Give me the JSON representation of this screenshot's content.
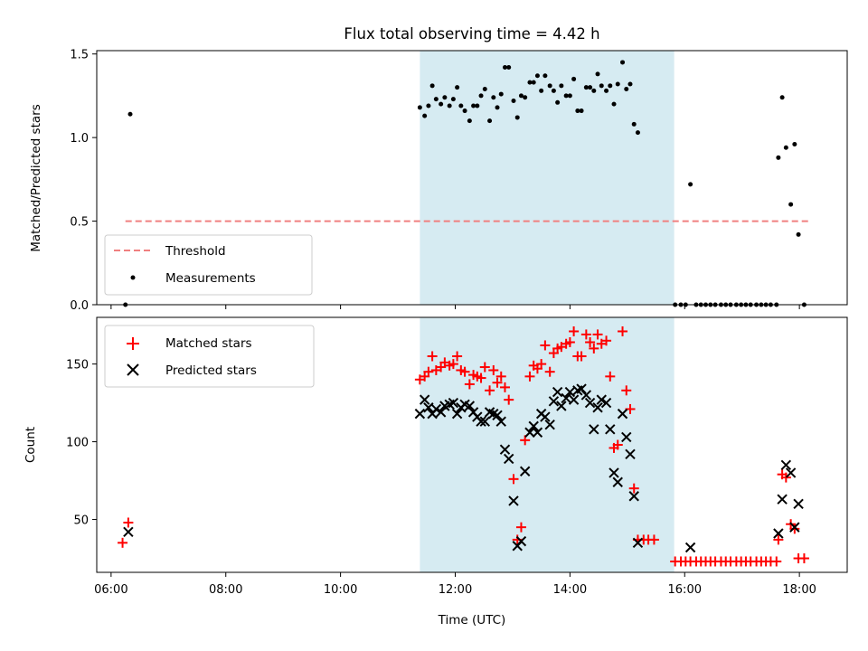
{
  "chart_data": [
    {
      "type": "scatter",
      "title": "Flux total observing time = 4.42 h",
      "xlabel": "",
      "ylabel": "Matched/Predicted stars",
      "xlim": [
        "05:45",
        "18:50"
      ],
      "ylim": [
        0,
        1.52
      ],
      "yticks": [
        "0.0",
        "0.5",
        "1.0",
        "1.5"
      ],
      "shaded_span": [
        "11:23",
        "15:49"
      ],
      "shaded_color": "#add8e6",
      "legend_position": "lower left",
      "threshold": {
        "name": "Threshold",
        "value": 0.5,
        "x_from": "06:15",
        "x_to": "18:10",
        "color": "#f08080"
      },
      "series": [
        {
          "name": "Measurements",
          "color": "#000000",
          "points": [
            [
              "06:15",
              0.0
            ],
            [
              "06:20",
              1.14
            ],
            [
              "11:23",
              1.18
            ],
            [
              "11:28",
              1.13
            ],
            [
              "11:32",
              1.19
            ],
            [
              "11:36",
              1.31
            ],
            [
              "11:40",
              1.23
            ],
            [
              "11:45",
              1.2
            ],
            [
              "11:49",
              1.24
            ],
            [
              "11:54",
              1.19
            ],
            [
              "11:58",
              1.23
            ],
            [
              "12:02",
              1.3
            ],
            [
              "12:06",
              1.19
            ],
            [
              "12:10",
              1.16
            ],
            [
              "12:15",
              1.1
            ],
            [
              "12:19",
              1.19
            ],
            [
              "12:23",
              1.19
            ],
            [
              "12:27",
              1.25
            ],
            [
              "12:31",
              1.29
            ],
            [
              "12:36",
              1.1
            ],
            [
              "12:40",
              1.24
            ],
            [
              "12:44",
              1.18
            ],
            [
              "12:48",
              1.26
            ],
            [
              "12:52",
              1.42
            ],
            [
              "12:56",
              1.42
            ],
            [
              "13:01",
              1.22
            ],
            [
              "13:05",
              1.12
            ],
            [
              "13:09",
              1.25
            ],
            [
              "13:13",
              1.24
            ],
            [
              "13:18",
              1.33
            ],
            [
              "13:22",
              1.33
            ],
            [
              "13:26",
              1.37
            ],
            [
              "13:30",
              1.28
            ],
            [
              "13:34",
              1.37
            ],
            [
              "13:39",
              1.31
            ],
            [
              "13:43",
              1.28
            ],
            [
              "13:47",
              1.21
            ],
            [
              "13:51",
              1.31
            ],
            [
              "13:56",
              1.25
            ],
            [
              "14:00",
              1.25
            ],
            [
              "14:04",
              1.35
            ],
            [
              "14:08",
              1.16
            ],
            [
              "14:12",
              1.16
            ],
            [
              "14:17",
              1.3
            ],
            [
              "14:21",
              1.3
            ],
            [
              "14:25",
              1.28
            ],
            [
              "14:29",
              1.38
            ],
            [
              "14:33",
              1.31
            ],
            [
              "14:38",
              1.28
            ],
            [
              "14:42",
              1.31
            ],
            [
              "14:46",
              1.2
            ],
            [
              "14:50",
              1.32
            ],
            [
              "14:55",
              1.45
            ],
            [
              "14:59",
              1.29
            ],
            [
              "15:03",
              1.32
            ],
            [
              "15:07",
              1.08
            ],
            [
              "15:11",
              1.03
            ],
            [
              "15:50",
              0.0
            ],
            [
              "15:56",
              0.0
            ],
            [
              "16:01",
              0.0
            ],
            [
              "16:06",
              0.72
            ],
            [
              "16:12",
              0.0
            ],
            [
              "16:17",
              0.0
            ],
            [
              "16:22",
              0.0
            ],
            [
              "16:27",
              0.0
            ],
            [
              "16:32",
              0.0
            ],
            [
              "16:38",
              0.0
            ],
            [
              "16:43",
              0.0
            ],
            [
              "16:48",
              0.0
            ],
            [
              "16:54",
              0.0
            ],
            [
              "16:59",
              0.0
            ],
            [
              "17:04",
              0.0
            ],
            [
              "17:09",
              0.0
            ],
            [
              "17:15",
              0.0
            ],
            [
              "17:20",
              0.0
            ],
            [
              "17:25",
              0.0
            ],
            [
              "17:30",
              0.0
            ],
            [
              "17:36",
              0.0
            ],
            [
              "17:38",
              0.88
            ],
            [
              "17:42",
              1.24
            ],
            [
              "17:46",
              0.94
            ],
            [
              "17:51",
              0.6
            ],
            [
              "17:55",
              0.96
            ],
            [
              "17:59",
              0.42
            ],
            [
              "18:05",
              0.0
            ]
          ]
        }
      ]
    },
    {
      "type": "scatter",
      "title": "",
      "xlabel": "Time (UTC)",
      "ylabel": "Count",
      "xlim": [
        "05:45",
        "18:50"
      ],
      "ylim": [
        16,
        180
      ],
      "xticks": [
        "06:00",
        "08:00",
        "10:00",
        "12:00",
        "14:00",
        "16:00",
        "18:00"
      ],
      "yticks": [
        "50",
        "100",
        "150"
      ],
      "shaded_span": [
        "11:23",
        "15:49"
      ],
      "shaded_color": "#add8e6",
      "legend_position": "upper left",
      "series": [
        {
          "name": "Matched stars",
          "marker": "+",
          "color": "#ff0000",
          "points": [
            [
              "06:12",
              35
            ],
            [
              "06:18",
              48
            ],
            [
              "11:23",
              140
            ],
            [
              "11:28",
              142
            ],
            [
              "11:32",
              145
            ],
            [
              "11:36",
              155
            ],
            [
              "11:40",
              146
            ],
            [
              "11:45",
              148
            ],
            [
              "11:49",
              151
            ],
            [
              "11:54",
              149
            ],
            [
              "11:58",
              150
            ],
            [
              "12:02",
              155
            ],
            [
              "12:06",
              146
            ],
            [
              "12:10",
              145
            ],
            [
              "12:15",
              137
            ],
            [
              "12:19",
              143
            ],
            [
              "12:23",
              142
            ],
            [
              "12:27",
              141
            ],
            [
              "12:31",
              148
            ],
            [
              "12:36",
              133
            ],
            [
              "12:40",
              146
            ],
            [
              "12:44",
              138
            ],
            [
              "12:48",
              142
            ],
            [
              "12:52",
              135
            ],
            [
              "12:56",
              127
            ],
            [
              "13:01",
              76
            ],
            [
              "13:05",
              37
            ],
            [
              "13:09",
              45
            ],
            [
              "13:13",
              101
            ],
            [
              "13:18",
              142
            ],
            [
              "13:22",
              149
            ],
            [
              "13:26",
              147
            ],
            [
              "13:30",
              150
            ],
            [
              "13:34",
              162
            ],
            [
              "13:39",
              145
            ],
            [
              "13:43",
              157
            ],
            [
              "13:47",
              160
            ],
            [
              "13:51",
              161
            ],
            [
              "13:56",
              163
            ],
            [
              "14:00",
              164
            ],
            [
              "14:04",
              171
            ],
            [
              "14:08",
              155
            ],
            [
              "14:12",
              155
            ],
            [
              "14:17",
              169
            ],
            [
              "14:21",
              164
            ],
            [
              "14:25",
              160
            ],
            [
              "14:29",
              169
            ],
            [
              "14:33",
              163
            ],
            [
              "14:38",
              165
            ],
            [
              "14:42",
              142
            ],
            [
              "14:46",
              96
            ],
            [
              "14:50",
              98
            ],
            [
              "14:55",
              171
            ],
            [
              "14:59",
              133
            ],
            [
              "15:03",
              121
            ],
            [
              "15:07",
              70
            ],
            [
              "15:11",
              37
            ],
            [
              "15:17",
              37
            ],
            [
              "15:22",
              37
            ],
            [
              "15:28",
              37
            ],
            [
              "15:50",
              23
            ],
            [
              "15:56",
              23
            ],
            [
              "16:01",
              23
            ],
            [
              "16:06",
              23
            ],
            [
              "16:12",
              23
            ],
            [
              "16:17",
              23
            ],
            [
              "16:22",
              23
            ],
            [
              "16:27",
              23
            ],
            [
              "16:32",
              23
            ],
            [
              "16:38",
              23
            ],
            [
              "16:43",
              23
            ],
            [
              "16:48",
              23
            ],
            [
              "16:54",
              23
            ],
            [
              "16:59",
              23
            ],
            [
              "17:04",
              23
            ],
            [
              "17:09",
              23
            ],
            [
              "17:15",
              23
            ],
            [
              "17:20",
              23
            ],
            [
              "17:25",
              23
            ],
            [
              "17:30",
              23
            ],
            [
              "17:36",
              23
            ],
            [
              "17:38",
              37
            ],
            [
              "17:42",
              79
            ],
            [
              "17:46",
              77
            ],
            [
              "17:51",
              47
            ],
            [
              "17:55",
              44
            ],
            [
              "17:59",
              25
            ],
            [
              "18:05",
              25
            ]
          ]
        },
        {
          "name": "Predicted stars",
          "marker": "x",
          "color": "#000000",
          "points": [
            [
              "06:18",
              42
            ],
            [
              "11:23",
              118
            ],
            [
              "11:28",
              127
            ],
            [
              "11:32",
              122
            ],
            [
              "11:36",
              118
            ],
            [
              "11:40",
              121
            ],
            [
              "11:45",
              119
            ],
            [
              "11:49",
              123
            ],
            [
              "11:54",
              124
            ],
            [
              "11:58",
              125
            ],
            [
              "12:02",
              118
            ],
            [
              "12:06",
              122
            ],
            [
              "12:10",
              124
            ],
            [
              "12:15",
              123
            ],
            [
              "12:19",
              119
            ],
            [
              "12:23",
              116
            ],
            [
              "12:27",
              113
            ],
            [
              "12:31",
              113
            ],
            [
              "12:36",
              119
            ],
            [
              "12:40",
              118
            ],
            [
              "12:44",
              117
            ],
            [
              "12:48",
              113
            ],
            [
              "12:52",
              95
            ],
            [
              "12:56",
              89
            ],
            [
              "13:01",
              62
            ],
            [
              "13:05",
              33
            ],
            [
              "13:09",
              36
            ],
            [
              "13:13",
              81
            ],
            [
              "13:18",
              106
            ],
            [
              "13:22",
              110
            ],
            [
              "13:26",
              106
            ],
            [
              "13:30",
              118
            ],
            [
              "13:34",
              116
            ],
            [
              "13:39",
              111
            ],
            [
              "13:43",
              126
            ],
            [
              "13:47",
              132
            ],
            [
              "13:51",
              123
            ],
            [
              "13:56",
              128
            ],
            [
              "14:00",
              132
            ],
            [
              "14:04",
              127
            ],
            [
              "14:08",
              133
            ],
            [
              "14:12",
              134
            ],
            [
              "14:17",
              130
            ],
            [
              "14:21",
              125
            ],
            [
              "14:25",
              108
            ],
            [
              "14:29",
              122
            ],
            [
              "14:33",
              127
            ],
            [
              "14:38",
              125
            ],
            [
              "14:42",
              108
            ],
            [
              "14:46",
              80
            ],
            [
              "14:50",
              74
            ],
            [
              "14:55",
              118
            ],
            [
              "14:59",
              103
            ],
            [
              "15:03",
              92
            ],
            [
              "15:07",
              65
            ],
            [
              "15:11",
              35
            ],
            [
              "16:06",
              32
            ],
            [
              "17:38",
              41
            ],
            [
              "17:42",
              63
            ],
            [
              "17:46",
              85
            ],
            [
              "17:51",
              80
            ],
            [
              "17:55",
              45
            ],
            [
              "17:59",
              60
            ]
          ]
        }
      ]
    }
  ]
}
